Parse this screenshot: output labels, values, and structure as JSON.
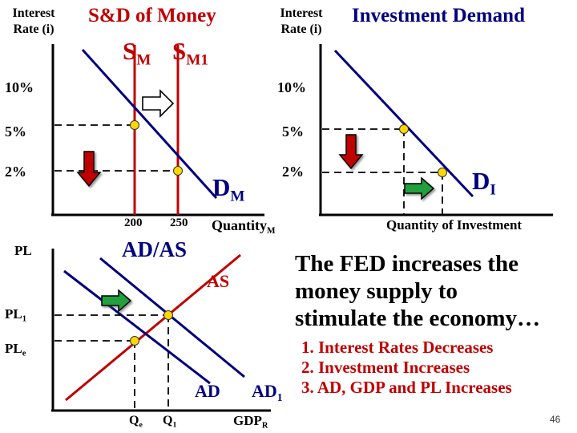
{
  "money_panel": {
    "y_axis_label_line1": "Interest",
    "y_axis_label_line2": "Rate (i)",
    "title": "S&D of Money",
    "supply_label": "S",
    "supply_label_sub": "M",
    "supply_shifted_label": "S",
    "supply_shifted_label_sub": "M1",
    "demand_label": "D",
    "demand_label_sub": "M",
    "rate_ticks": [
      "10%",
      "5%",
      "2%"
    ],
    "quantity_ticks": [
      "200",
      "250"
    ],
    "x_axis_label": "Quantity",
    "x_axis_label_sub": "M"
  },
  "investment_panel": {
    "y_axis_label_line1": "Interest",
    "y_axis_label_line2": "Rate (i)",
    "title": "Investment Demand",
    "rate_ticks": [
      "10%",
      "5%",
      "2%"
    ],
    "demand_label": "D",
    "demand_label_sub": "I",
    "x_axis_label": "Quantity of Investment"
  },
  "adas_panel": {
    "y_axis_label": "PL",
    "title": "AD/AS",
    "supply_label": "AS",
    "demand_label": "AD",
    "demand_shifted_label": "AD",
    "demand_shifted_label_sub": "1",
    "price_level_new": "PL",
    "price_level_new_sub": "1",
    "price_level_initial": "PL",
    "price_level_initial_sub": "e",
    "q_initial": "Q",
    "q_initial_sub": "e",
    "q_new": "Q",
    "q_new_sub": "1",
    "x_axis_label": "GDP",
    "x_axis_label_sub": "R"
  },
  "summary": {
    "headline_line1": "The FED increases the",
    "headline_line2": "money supply to",
    "headline_line3": "stimulate the economy…",
    "steps": [
      "1.  Interest Rates Decreases",
      "2.  Investment Increases",
      "3.  AD, GDP and PL Increases"
    ]
  },
  "slide_number": "46",
  "colors": {
    "axis": "#000000",
    "supply_line": "#C00000",
    "demand_line": "#000080",
    "point_fill": "#FFD700",
    "arrow_down": "#C00000",
    "arrow_right": "#22A03C",
    "summary_text": "#C00000"
  }
}
